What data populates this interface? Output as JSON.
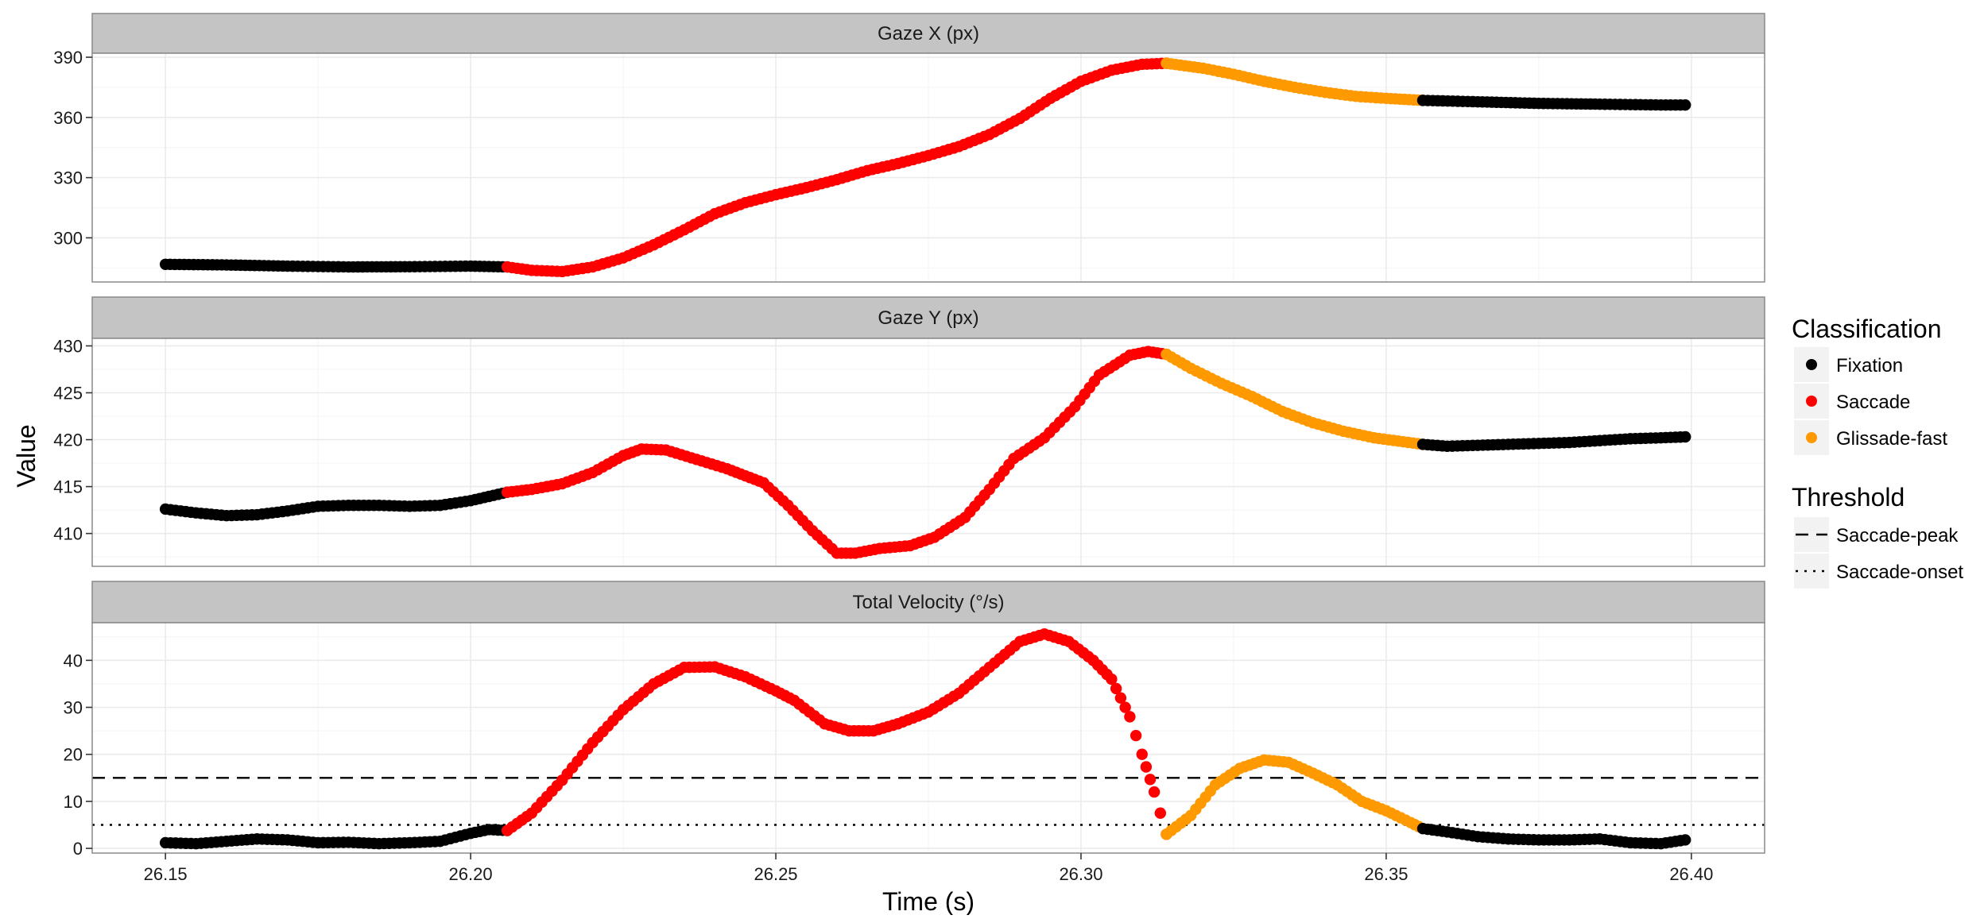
{
  "chart_data": {
    "type": "scatter",
    "xlabel": "Time (s)",
    "ylabel": "Value",
    "x_ticks": [
      "26.15",
      "26.20",
      "26.25",
      "26.30",
      "26.35",
      "26.40"
    ],
    "x_tick_values": [
      26.15,
      26.2,
      26.25,
      26.3,
      26.35,
      26.4
    ],
    "xlim": [
      26.138,
      26.412
    ],
    "panels": [
      {
        "strip": "Gaze X (px)",
        "ylim": [
          278,
          392
        ],
        "y_ticks": [
          "300",
          "330",
          "360",
          "390"
        ],
        "y_tick_values": [
          300,
          330,
          360,
          390
        ],
        "series": [
          {
            "key": "fixation",
            "points": [
              [
                26.15,
                286.8
              ],
              [
                26.16,
                286.5
              ],
              [
                26.17,
                285.9
              ],
              [
                26.18,
                285.5
              ],
              [
                26.19,
                285.6
              ],
              [
                26.2,
                285.9
              ],
              [
                26.206,
                285.5
              ]
            ]
          },
          {
            "key": "saccade",
            "points": [
              [
                26.206,
                285.5
              ],
              [
                26.21,
                283.8
              ],
              [
                26.215,
                283.2
              ],
              [
                26.22,
                285.5
              ],
              [
                26.225,
                290.0
              ],
              [
                26.23,
                296.5
              ],
              [
                26.235,
                304.0
              ],
              [
                26.24,
                312.0
              ],
              [
                26.245,
                317.5
              ],
              [
                26.25,
                321.5
              ],
              [
                26.255,
                325.0
              ],
              [
                26.26,
                329.0
              ],
              [
                26.265,
                333.5
              ],
              [
                26.27,
                337.0
              ],
              [
                26.275,
                341.0
              ],
              [
                26.28,
                345.5
              ],
              [
                26.285,
                351.5
              ],
              [
                26.29,
                359.5
              ],
              [
                26.295,
                369.5
              ],
              [
                26.3,
                378.0
              ],
              [
                26.305,
                383.5
              ],
              [
                26.31,
                386.5
              ],
              [
                26.314,
                387.0
              ]
            ]
          },
          {
            "key": "glissade",
            "points": [
              [
                26.314,
                387.0
              ],
              [
                26.32,
                384.5
              ],
              [
                26.325,
                381.5
              ],
              [
                26.33,
                378.0
              ],
              [
                26.335,
                375.0
              ],
              [
                26.34,
                372.5
              ],
              [
                26.345,
                370.5
              ],
              [
                26.35,
                369.5
              ],
              [
                26.356,
                368.5
              ]
            ]
          },
          {
            "key": "fixation",
            "points": [
              [
                26.356,
                368.5
              ],
              [
                26.365,
                367.8
              ],
              [
                26.375,
                367.0
              ],
              [
                26.385,
                366.6
              ],
              [
                26.395,
                366.2
              ],
              [
                26.399,
                366.2
              ]
            ]
          }
        ]
      },
      {
        "strip": "Gaze Y (px)",
        "ylim": [
          406.5,
          430.8
        ],
        "y_ticks": [
          "410",
          "415",
          "420",
          "425",
          "430"
        ],
        "y_tick_values": [
          410,
          415,
          420,
          425,
          430
        ],
        "series": [
          {
            "key": "fixation",
            "points": [
              [
                26.15,
                412.6
              ],
              [
                26.155,
                412.2
              ],
              [
                26.16,
                411.9
              ],
              [
                26.165,
                412.0
              ],
              [
                26.17,
                412.4
              ],
              [
                26.175,
                412.9
              ],
              [
                26.18,
                413.0
              ],
              [
                26.185,
                413.0
              ],
              [
                26.19,
                412.9
              ],
              [
                26.195,
                413.0
              ],
              [
                26.2,
                413.5
              ],
              [
                26.206,
                414.4
              ]
            ]
          },
          {
            "key": "saccade",
            "points": [
              [
                26.206,
                414.4
              ],
              [
                26.21,
                414.7
              ],
              [
                26.215,
                415.3
              ],
              [
                26.22,
                416.5
              ],
              [
                26.225,
                418.3
              ],
              [
                26.228,
                419.0
              ],
              [
                26.232,
                418.9
              ],
              [
                26.237,
                417.9
              ],
              [
                26.242,
                416.9
              ],
              [
                26.248,
                415.4
              ],
              [
                26.252,
                413.0
              ],
              [
                26.256,
                410.3
              ],
              [
                26.26,
                407.9
              ],
              [
                26.263,
                407.9
              ],
              [
                26.267,
                408.4
              ],
              [
                26.272,
                408.7
              ],
              [
                26.276,
                409.6
              ],
              [
                26.281,
                411.7
              ],
              [
                26.285,
                414.7
              ],
              [
                26.289,
                418.0
              ],
              [
                26.294,
                420.2
              ],
              [
                26.299,
                423.5
              ],
              [
                26.303,
                426.9
              ],
              [
                26.308,
                429.0
              ],
              [
                26.311,
                429.4
              ],
              [
                26.314,
                429.1
              ]
            ]
          },
          {
            "key": "glissade",
            "points": [
              [
                26.314,
                429.1
              ],
              [
                26.318,
                427.6
              ],
              [
                26.323,
                426.0
              ],
              [
                26.328,
                424.6
              ],
              [
                26.333,
                423.0
              ],
              [
                26.338,
                421.8
              ],
              [
                26.343,
                420.9
              ],
              [
                26.348,
                420.2
              ],
              [
                26.356,
                419.5
              ]
            ]
          },
          {
            "key": "fixation",
            "points": [
              [
                26.356,
                419.5
              ],
              [
                26.36,
                419.3
              ],
              [
                26.365,
                419.4
              ],
              [
                26.37,
                419.5
              ],
              [
                26.375,
                419.6
              ],
              [
                26.38,
                419.7
              ],
              [
                26.385,
                419.9
              ],
              [
                26.39,
                420.1
              ],
              [
                26.395,
                420.2
              ],
              [
                26.399,
                420.3
              ]
            ]
          }
        ]
      },
      {
        "strip": "Total Velocity (°/s)",
        "ylim": [
          -1,
          48
        ],
        "y_ticks": [
          "0",
          "10",
          "20",
          "30",
          "40"
        ],
        "y_tick_values": [
          0,
          10,
          20,
          30,
          40
        ],
        "thresholds": [
          {
            "key": "saccade-peak",
            "value": 15,
            "dash": "16,10"
          },
          {
            "key": "saccade-onset",
            "value": 5,
            "dash": "3,8"
          }
        ],
        "series": [
          {
            "key": "fixation",
            "points": [
              [
                26.15,
                1.2
              ],
              [
                26.155,
                1.0
              ],
              [
                26.16,
                1.5
              ],
              [
                26.165,
                2.0
              ],
              [
                26.17,
                1.8
              ],
              [
                26.175,
                1.2
              ],
              [
                26.18,
                1.3
              ],
              [
                26.185,
                1.0
              ],
              [
                26.19,
                1.2
              ],
              [
                26.195,
                1.5
              ],
              [
                26.2,
                3.2
              ],
              [
                26.203,
                4.0
              ],
              [
                26.206,
                3.8
              ]
            ]
          },
          {
            "key": "saccade",
            "points": [
              [
                26.206,
                3.8
              ],
              [
                26.21,
                7.5
              ],
              [
                26.215,
                14.5
              ],
              [
                26.22,
                22.5
              ],
              [
                26.225,
                29.5
              ],
              [
                26.23,
                35.0
              ],
              [
                26.235,
                38.5
              ],
              [
                26.24,
                38.6
              ],
              [
                26.245,
                36.5
              ],
              [
                26.25,
                33.5
              ],
              [
                26.253,
                31.5
              ],
              [
                26.258,
                26.5
              ],
              [
                26.262,
                25.0
              ],
              [
                26.266,
                25.0
              ],
              [
                26.27,
                26.5
              ],
              [
                26.275,
                29.0
              ],
              [
                26.28,
                33.0
              ],
              [
                26.285,
                38.5
              ],
              [
                26.29,
                44.0
              ],
              [
                26.294,
                45.6
              ],
              [
                26.298,
                44.0
              ],
              [
                26.302,
                40.0
              ],
              [
                26.305,
                36.0
              ],
              [
                26.308,
                28.0
              ],
              [
                26.31,
                20.0
              ],
              [
                26.312,
                12.0
              ],
              [
                26.314,
                3.0
              ]
            ]
          },
          {
            "key": "glissade",
            "points": [
              [
                26.314,
                3.0
              ],
              [
                26.318,
                7.0
              ],
              [
                26.322,
                13.5
              ],
              [
                26.326,
                17.0
              ],
              [
                26.33,
                18.8
              ],
              [
                26.334,
                18.3
              ],
              [
                26.338,
                16.0
              ],
              [
                26.342,
                13.5
              ],
              [
                26.346,
                10.0
              ],
              [
                26.35,
                8.0
              ],
              [
                26.354,
                5.5
              ],
              [
                26.356,
                4.2
              ]
            ]
          },
          {
            "key": "fixation",
            "points": [
              [
                26.356,
                4.2
              ],
              [
                26.36,
                3.5
              ],
              [
                26.365,
                2.5
              ],
              [
                26.37,
                2.0
              ],
              [
                26.375,
                1.8
              ],
              [
                26.38,
                1.8
              ],
              [
                26.385,
                2.0
              ],
              [
                26.39,
                1.2
              ],
              [
                26.395,
                1.0
              ],
              [
                26.399,
                1.8
              ]
            ]
          }
        ]
      }
    ],
    "legend": {
      "placement": "right",
      "classification_title": "Classification",
      "classification_items": [
        {
          "key": "fixation",
          "label": "Fixation",
          "color": "#000000"
        },
        {
          "key": "saccade",
          "label": "Saccade",
          "color": "#ff0000"
        },
        {
          "key": "glissade",
          "label": "Glissade-fast",
          "color": "#ff9900"
        }
      ],
      "threshold_title": "Threshold",
      "threshold_items": [
        {
          "key": "saccade-peak",
          "label": "Saccade-peak",
          "dash": "16,10"
        },
        {
          "key": "saccade-onset",
          "label": "Saccade-onset",
          "dash": "3,8"
        }
      ]
    },
    "grid": true,
    "colors": {
      "strip_fill": "#c4c4c4",
      "grid_major": "#ebebeb",
      "grid_minor": "#f5f5f5",
      "panel_border": "#8a8a8a"
    }
  }
}
